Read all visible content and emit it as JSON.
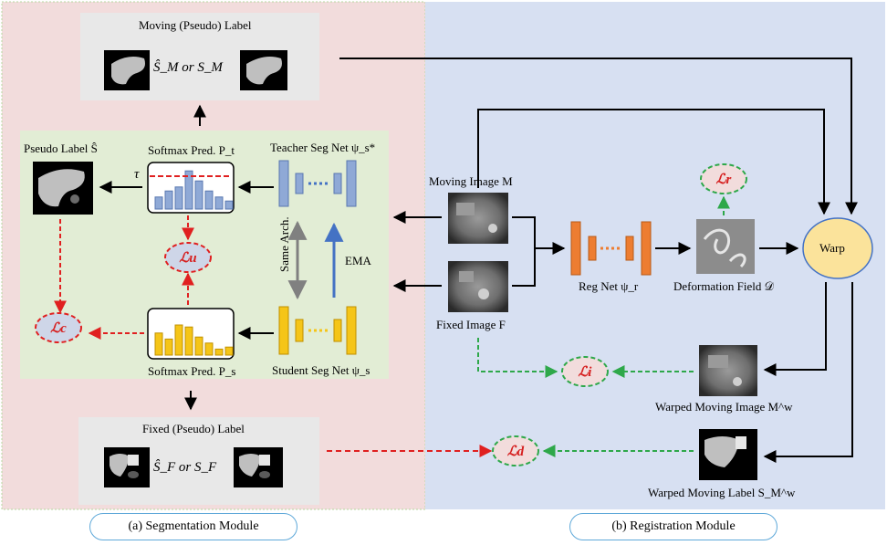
{
  "segmentation": {
    "moving_label_title": "Moving (Pseudo) Label",
    "moving_label_formula": "Ŝ_M or S_M",
    "fixed_label_title": "Fixed (Pseudo) Label",
    "fixed_label_formula": "Ŝ_F or S_F",
    "pseudo_label": "Pseudo Label Ŝ",
    "softmax_teacher": "Softmax Pred. P_t",
    "softmax_student": "Softmax Pred. P_s",
    "teacher_net": "Teacher Seg Net ψ_s*",
    "student_net": "Student Seg Net ψ_s",
    "tau": "τ",
    "same_arch": "Same Arch.",
    "ema": "EMA",
    "loss_u": "ℒu",
    "loss_c": "ℒc",
    "module_label": "(a) Segmentation Module"
  },
  "registration": {
    "moving_image": "Moving Image M",
    "fixed_image": "Fixed Image F",
    "reg_net": "Reg Net ψ_r",
    "deformation_field": "Deformation Field 𝒟",
    "warp": "Warp",
    "warped_moving_image": "Warped Moving Image M^w",
    "warped_moving_label": "Warped Moving Label S_M^w",
    "loss_r": "ℒr",
    "loss_i": "ℒi",
    "loss_d": "ℒd",
    "module_label": "(b) Registration Module"
  },
  "histogram": {
    "teacher_bars": [
      0.3,
      0.45,
      0.55,
      0.95,
      0.7,
      0.45,
      0.3,
      0.2
    ],
    "student_bars": [
      0.55,
      0.4,
      0.75,
      0.7,
      0.45,
      0.3,
      0.15,
      0.2
    ],
    "threshold": 0.75
  },
  "colors": {
    "seg_bg": "#f2dcdc",
    "reg_bg": "#d7e0f2",
    "green_panel": "#e2edd5",
    "teacher_blue": "#8fa9d6",
    "student_yellow": "#f5c518",
    "reg_orange": "#ed7d31",
    "red_dash": "#e02020",
    "green_dash": "#2ea84a",
    "warp_fill": "#fbe39b"
  }
}
